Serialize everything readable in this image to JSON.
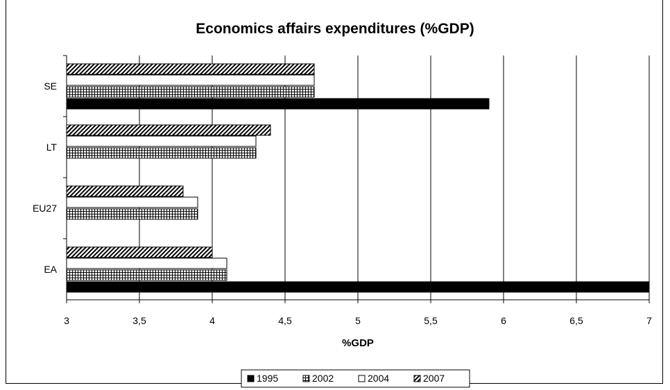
{
  "chart_data": {
    "type": "bar",
    "orientation": "horizontal",
    "title": "Economics affairs expenditures (%GDP)",
    "xlabel": "%GDP",
    "ylabel": "",
    "xlim": [
      3,
      7
    ],
    "x_ticks": [
      "3",
      "3,5",
      "4",
      "4,5",
      "5",
      "5,5",
      "6",
      "6,5",
      "7"
    ],
    "x_tick_values": [
      3,
      3.5,
      4,
      4.5,
      5,
      5.5,
      6,
      6.5,
      7
    ],
    "categories": [
      "EA",
      "EU27",
      "LT",
      "SE"
    ],
    "series": [
      {
        "name": "1995",
        "values": [
          7.0,
          null,
          null,
          5.9
        ],
        "pattern": "solid",
        "color": "#000000"
      },
      {
        "name": "2002",
        "values": [
          4.1,
          3.9,
          4.3,
          4.7
        ],
        "pattern": "grid",
        "color": "#000000"
      },
      {
        "name": "2004",
        "values": [
          4.1,
          3.9,
          4.3,
          4.7
        ],
        "pattern": "white",
        "color": "#ffffff"
      },
      {
        "name": "2007",
        "values": [
          4.0,
          3.8,
          4.4,
          4.7
        ],
        "pattern": "diagonal",
        "color": "#000000"
      }
    ],
    "grid": true,
    "legend_position": "bottom"
  }
}
